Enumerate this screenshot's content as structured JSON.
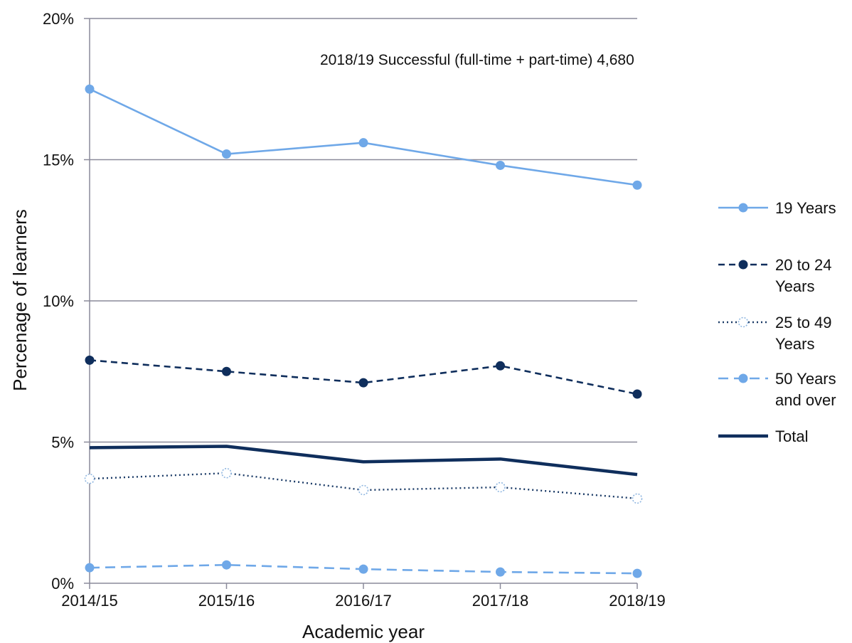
{
  "chart_data": {
    "type": "line",
    "title": "",
    "xlabel": "Academic year",
    "ylabel": "Percenage of learners",
    "categories": [
      "2014/15",
      "2015/16",
      "2016/17",
      "2017/18",
      "2018/19"
    ],
    "ylim": [
      0,
      20
    ],
    "yticks": [
      0,
      5,
      10,
      15,
      20
    ],
    "ytick_labels": [
      "0%",
      "5%",
      "10%",
      "15%",
      "20%"
    ],
    "grid": true,
    "legend_position": "right",
    "annotation": "2018/19 Successful (full-time + part-time)   4,680",
    "series": [
      {
        "name": "19 Years",
        "name_lines": [
          "19 Years"
        ],
        "values": [
          17.5,
          15.2,
          15.6,
          14.8,
          14.1
        ],
        "color": "#6fa8e8",
        "dash": "solid",
        "marker": "filled"
      },
      {
        "name": "20 to 24 Years",
        "name_lines": [
          "20 to 24",
          "Years"
        ],
        "values": [
          7.9,
          7.5,
          7.1,
          7.7,
          6.7
        ],
        "color": "#0f2e5c",
        "dash": "dashed",
        "marker": "filled"
      },
      {
        "name": "25 to 49 Years",
        "name_lines": [
          "25 to 49",
          "Years"
        ],
        "values": [
          3.7,
          3.9,
          3.3,
          3.4,
          3.0
        ],
        "color": "#1a3a66",
        "dash": "dotted",
        "marker": "hollow"
      },
      {
        "name": "50 Years and over",
        "name_lines": [
          "50 Years",
          "and over"
        ],
        "values": [
          0.55,
          0.65,
          0.5,
          0.4,
          0.35
        ],
        "color": "#6fa8e8",
        "dash": "longdash",
        "marker": "filled"
      },
      {
        "name": "Total",
        "name_lines": [
          "Total"
        ],
        "values": [
          4.8,
          4.85,
          4.3,
          4.4,
          3.85
        ],
        "color": "#0f2e5c",
        "dash": "thick",
        "marker": "none"
      }
    ]
  }
}
